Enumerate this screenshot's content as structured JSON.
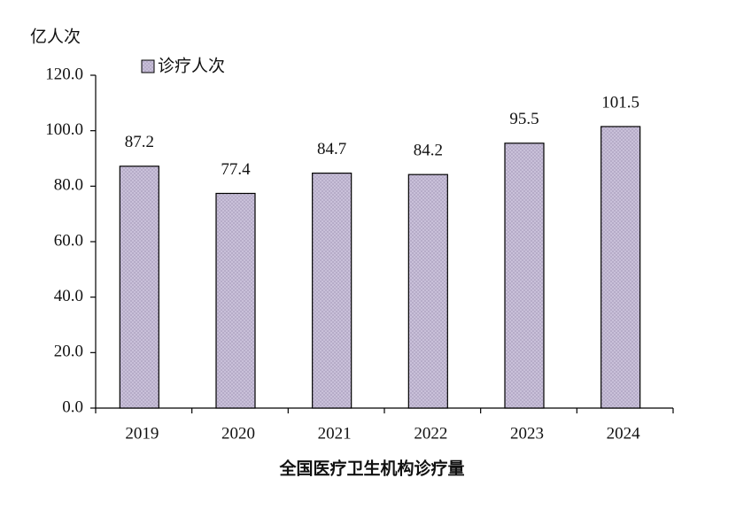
{
  "chart_data": {
    "type": "bar",
    "title": "全国医疗卫生机构诊疗量",
    "y_axis_label": "亿人次",
    "categories": [
      "2019",
      "2020",
      "2021",
      "2022",
      "2023",
      "2024"
    ],
    "series": [
      {
        "name": "诊疗人次",
        "color": "#c9c0d9",
        "values": [
          87.2,
          77.4,
          84.7,
          84.2,
          95.5,
          101.5
        ]
      }
    ],
    "ylim": [
      0,
      120
    ],
    "yticks": [
      {
        "value": 0,
        "label": "0.0"
      },
      {
        "value": 20,
        "label": "20.0"
      },
      {
        "value": 40,
        "label": "40.0"
      },
      {
        "value": 60,
        "label": "60.0"
      },
      {
        "value": 80,
        "label": "80.0"
      },
      {
        "value": 100,
        "label": "100.0"
      },
      {
        "value": 120,
        "label": "120.0"
      }
    ],
    "grid": false,
    "legend": "top-left"
  }
}
